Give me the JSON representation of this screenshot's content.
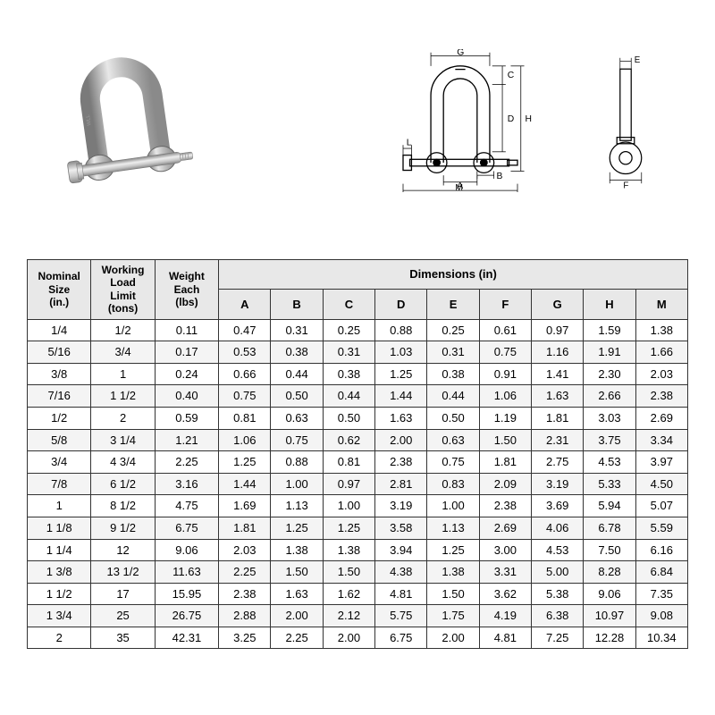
{
  "table": {
    "header": {
      "nominal": "Nominal\nSize\n(in.)",
      "wll": "Working\nLoad\nLimit\n(tons)",
      "weight": "Weight\nEach\n(lbs)",
      "dimensions_title": "Dimensions (in)",
      "dim_cols": [
        "A",
        "B",
        "C",
        "D",
        "E",
        "F",
        "G",
        "H",
        "M"
      ]
    },
    "rows": [
      [
        "1/4",
        "1/2",
        "0.11",
        "0.47",
        "0.31",
        "0.25",
        "0.88",
        "0.25",
        "0.61",
        "0.97",
        "1.59",
        "1.38"
      ],
      [
        "5/16",
        "3/4",
        "0.17",
        "0.53",
        "0.38",
        "0.31",
        "1.03",
        "0.31",
        "0.75",
        "1.16",
        "1.91",
        "1.66"
      ],
      [
        "3/8",
        "1",
        "0.24",
        "0.66",
        "0.44",
        "0.38",
        "1.25",
        "0.38",
        "0.91",
        "1.41",
        "2.30",
        "2.03"
      ],
      [
        "7/16",
        "1 1/2",
        "0.40",
        "0.75",
        "0.50",
        "0.44",
        "1.44",
        "0.44",
        "1.06",
        "1.63",
        "2.66",
        "2.38"
      ],
      [
        "1/2",
        "2",
        "0.59",
        "0.81",
        "0.63",
        "0.50",
        "1.63",
        "0.50",
        "1.19",
        "1.81",
        "3.03",
        "2.69"
      ],
      [
        "5/8",
        "3 1/4",
        "1.21",
        "1.06",
        "0.75",
        "0.62",
        "2.00",
        "0.63",
        "1.50",
        "2.31",
        "3.75",
        "3.34"
      ],
      [
        "3/4",
        "4 3/4",
        "2.25",
        "1.25",
        "0.88",
        "0.81",
        "2.38",
        "0.75",
        "1.81",
        "2.75",
        "4.53",
        "3.97"
      ],
      [
        "7/8",
        "6 1/2",
        "3.16",
        "1.44",
        "1.00",
        "0.97",
        "2.81",
        "0.83",
        "2.09",
        "3.19",
        "5.33",
        "4.50"
      ],
      [
        "1",
        "8 1/2",
        "4.75",
        "1.69",
        "1.13",
        "1.00",
        "3.19",
        "1.00",
        "2.38",
        "3.69",
        "5.94",
        "5.07"
      ],
      [
        "1 1/8",
        "9 1/2",
        "6.75",
        "1.81",
        "1.25",
        "1.25",
        "3.58",
        "1.13",
        "2.69",
        "4.06",
        "6.78",
        "5.59"
      ],
      [
        "1 1/4",
        "12",
        "9.06",
        "2.03",
        "1.38",
        "1.38",
        "3.94",
        "1.25",
        "3.00",
        "4.53",
        "7.50",
        "6.16"
      ],
      [
        "1 3/8",
        "13 1/2",
        "11.63",
        "2.25",
        "1.50",
        "1.50",
        "4.38",
        "1.38",
        "3.31",
        "5.00",
        "8.28",
        "6.84"
      ],
      [
        "1 1/2",
        "17",
        "15.95",
        "2.38",
        "1.63",
        "1.62",
        "4.81",
        "1.50",
        "3.62",
        "5.38",
        "9.06",
        "7.35"
      ],
      [
        "1 3/4",
        "25",
        "26.75",
        "2.88",
        "2.00",
        "2.12",
        "5.75",
        "1.75",
        "4.19",
        "6.38",
        "10.97",
        "9.08"
      ],
      [
        "2",
        "35",
        "42.31",
        "3.25",
        "2.25",
        "2.00",
        "6.75",
        "2.00",
        "4.81",
        "7.25",
        "12.28",
        "10.34"
      ]
    ]
  },
  "diagram_labels": {
    "G": "G",
    "C": "C",
    "D": "D",
    "H": "H",
    "B": "B",
    "A": "A",
    "M": "M",
    "L": "L",
    "E": "E",
    "F": "F"
  },
  "style": {
    "header_bg": "#e8e8e8",
    "row_alt_bg": "#f4f4f4",
    "border_color": "#333333",
    "font_size_body": 13,
    "font_size_header": 12
  }
}
